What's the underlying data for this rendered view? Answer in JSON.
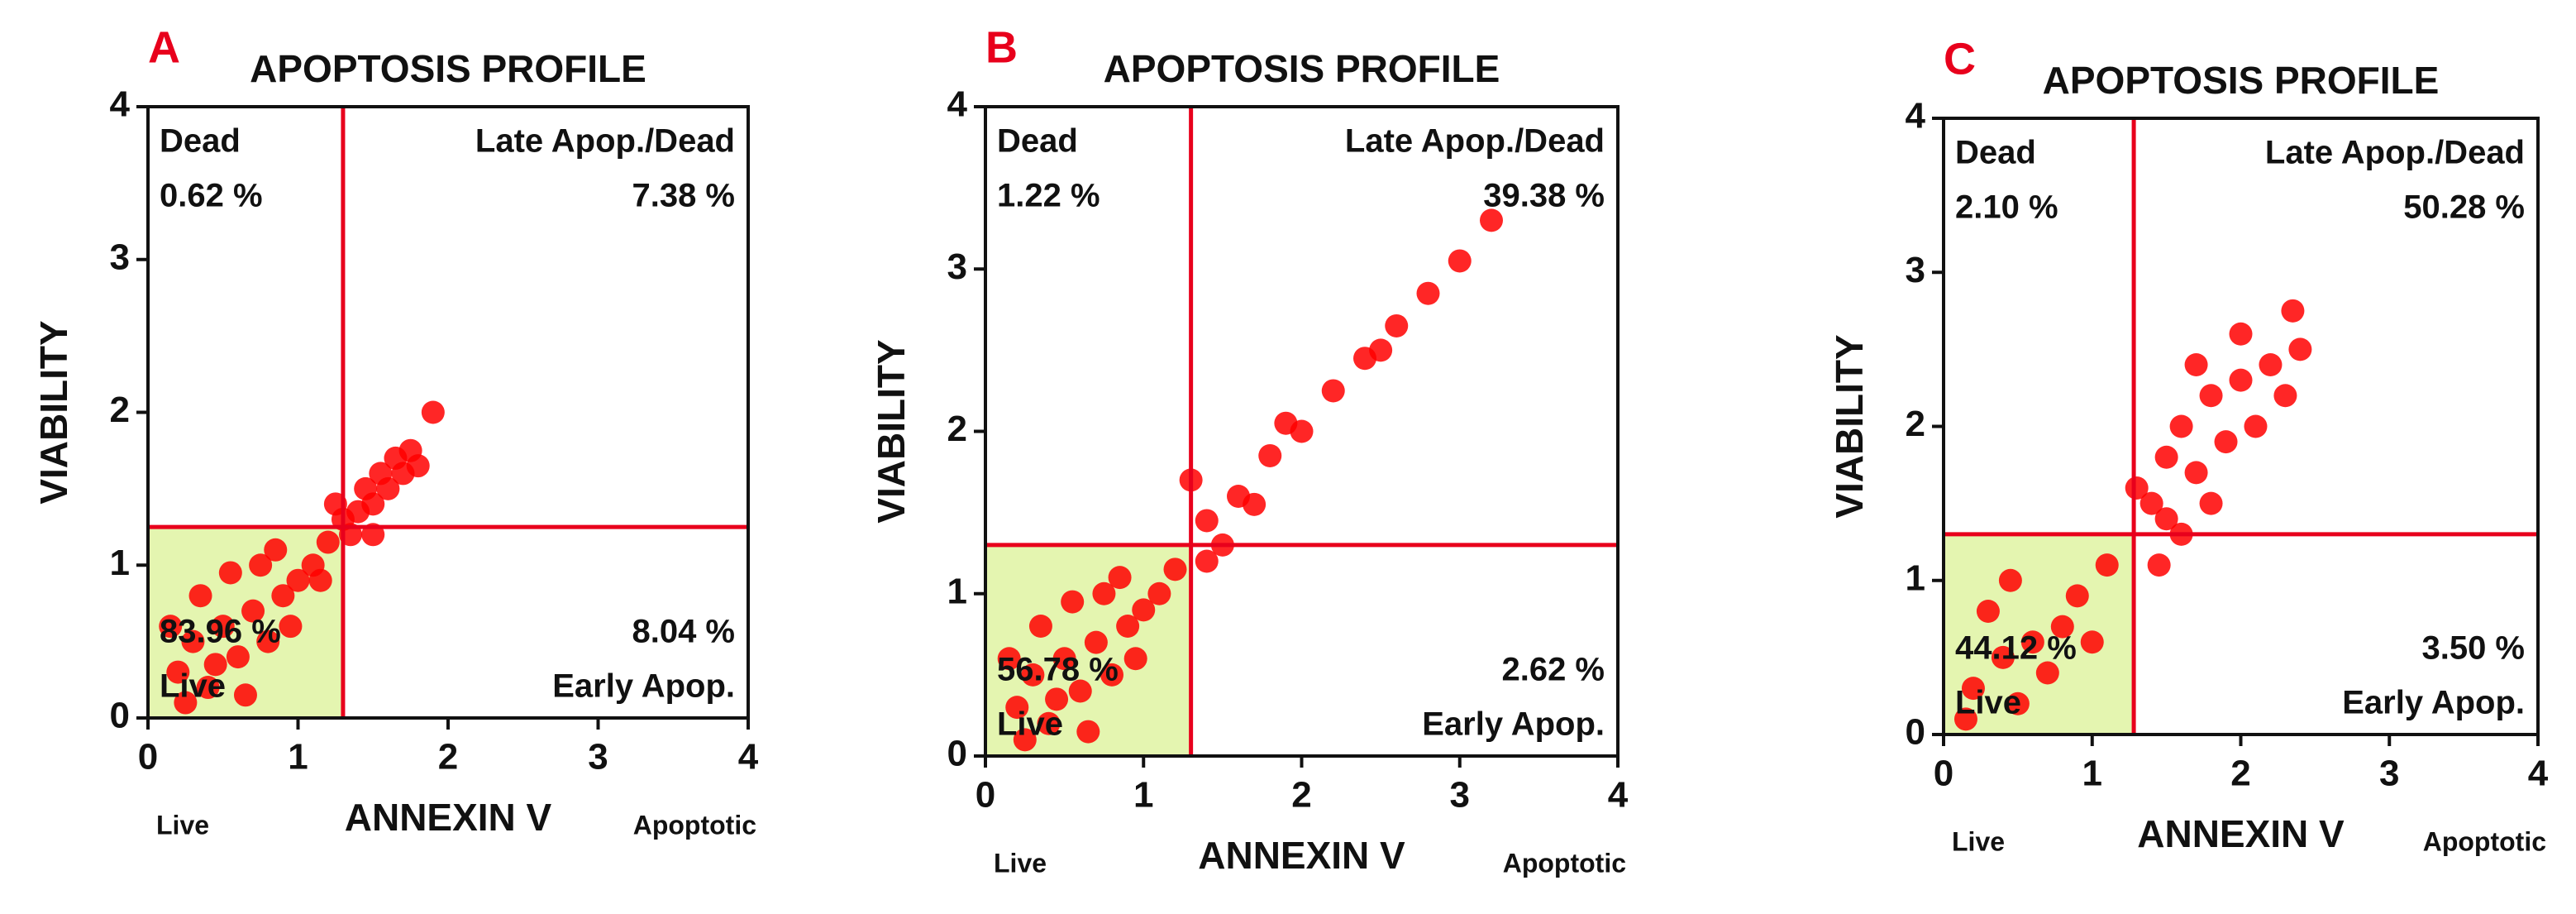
{
  "chart_data": [
    {
      "type": "scatter",
      "panel": "A",
      "title": "APOPTOSIS PROFILE",
      "x_label": "ANNEXIN V",
      "y_label": "VIABILITY",
      "x_left_label": "Live",
      "x_right_label": "Apoptotic",
      "xlim": [
        0,
        4
      ],
      "ylim": [
        0,
        4
      ],
      "xticks": [
        0,
        1,
        2,
        3,
        4
      ],
      "yticks": [
        0,
        1,
        2,
        3,
        4
      ],
      "color": "#ff0000",
      "gate_color": "#e8001c",
      "live_fill": "#e4f5b0",
      "gate": {
        "x": 1.3,
        "y": 1.25
      },
      "quadrants": [
        {
          "name": "Dead",
          "corner": "top-left",
          "value": 0.62,
          "value_label": "0.62 %"
        },
        {
          "name": "Late Apop./Dead",
          "corner": "top-right",
          "value": 7.38,
          "value_label": "7.38 %"
        },
        {
          "name": "Early Apop.",
          "corner": "bottom-right",
          "value": 8.04,
          "value_label": "8.04 %"
        },
        {
          "name": "Live",
          "corner": "bottom-left",
          "value": 83.96,
          "value_label": "83.96 %"
        }
      ],
      "x": [
        0.2,
        0.3,
        0.4,
        0.5,
        0.6,
        0.7,
        0.8,
        0.9,
        1.0,
        0.35,
        0.55,
        0.15,
        0.75,
        0.45,
        0.65,
        0.25,
        0.95,
        1.1,
        0.85,
        1.2,
        1.3,
        1.4,
        1.45,
        1.5,
        1.55,
        1.6,
        1.65,
        1.7,
        1.75,
        1.8,
        1.35,
        1.5,
        1.25,
        1.9,
        1.15
      ],
      "values": [
        0.3,
        0.5,
        0.2,
        0.6,
        0.4,
        0.7,
        0.5,
        0.8,
        0.9,
        0.8,
        0.95,
        0.6,
        1.0,
        0.35,
        0.15,
        0.1,
        0.6,
        1.0,
        1.1,
        1.15,
        1.3,
        1.35,
        1.5,
        1.4,
        1.6,
        1.5,
        1.7,
        1.6,
        1.75,
        1.65,
        1.2,
        1.2,
        1.4,
        2.0,
        0.9
      ]
    },
    {
      "type": "scatter",
      "panel": "B",
      "title": "APOPTOSIS PROFILE",
      "x_label": "ANNEXIN V",
      "y_label": "VIABILITY",
      "x_left_label": "Live",
      "x_right_label": "Apoptotic",
      "xlim": [
        0,
        4
      ],
      "ylim": [
        0,
        4
      ],
      "xticks": [
        0,
        1,
        2,
        3,
        4
      ],
      "yticks": [
        0,
        1,
        2,
        3,
        4
      ],
      "color": "#ff0000",
      "gate_color": "#e8001c",
      "live_fill": "#e4f5b0",
      "gate": {
        "x": 1.3,
        "y": 1.3
      },
      "quadrants": [
        {
          "name": "Dead",
          "corner": "top-left",
          "value": 1.22,
          "value_label": "1.22 %"
        },
        {
          "name": "Late Apop./Dead",
          "corner": "top-right",
          "value": 39.38,
          "value_label": "39.38 %"
        },
        {
          "name": "Early Apop.",
          "corner": "bottom-right",
          "value": 2.62,
          "value_label": "2.62 %"
        },
        {
          "name": "Live",
          "corner": "bottom-left",
          "value": 56.78,
          "value_label": "56.78 %"
        }
      ],
      "x": [
        0.2,
        0.3,
        0.4,
        0.5,
        0.6,
        0.7,
        0.8,
        0.9,
        1.0,
        0.35,
        0.55,
        0.15,
        0.75,
        0.45,
        0.65,
        0.25,
        0.95,
        1.1,
        0.85,
        1.2,
        1.4,
        1.6,
        1.8,
        2.0,
        2.2,
        2.4,
        2.6,
        2.8,
        3.0,
        3.2,
        1.5,
        1.7,
        1.9,
        2.5,
        1.3,
        1.4
      ],
      "values": [
        0.3,
        0.5,
        0.2,
        0.6,
        0.4,
        0.7,
        0.5,
        0.8,
        0.9,
        0.8,
        0.95,
        0.6,
        1.0,
        0.35,
        0.15,
        0.1,
        0.6,
        1.0,
        1.1,
        1.15,
        1.45,
        1.6,
        1.85,
        2.0,
        2.25,
        2.45,
        2.65,
        2.85,
        3.05,
        3.3,
        1.3,
        1.55,
        2.05,
        2.5,
        1.7,
        1.2
      ]
    },
    {
      "type": "scatter",
      "panel": "C",
      "title": "APOPTOSIS PROFILE",
      "x_label": "ANNEXIN V",
      "y_label": "VIABILITY",
      "x_left_label": "Live",
      "x_right_label": "Apoptotic",
      "xlim": [
        0,
        4
      ],
      "ylim": [
        0,
        4
      ],
      "xticks": [
        0,
        1,
        2,
        3,
        4
      ],
      "yticks": [
        0,
        1,
        2,
        3,
        4
      ],
      "color": "#ff0000",
      "gate_color": "#e8001c",
      "live_fill": "#e4f5b0",
      "gate": {
        "x": 1.28,
        "y": 1.3
      },
      "quadrants": [
        {
          "name": "Dead",
          "corner": "top-left",
          "value": 2.1,
          "value_label": "2.10 %"
        },
        {
          "name": "Late Apop./Dead",
          "corner": "top-right",
          "value": 50.28,
          "value_label": "50.28 %"
        },
        {
          "name": "Early Apop.",
          "corner": "bottom-right",
          "value": 3.5,
          "value_label": "3.50 %"
        },
        {
          "name": "Live",
          "corner": "bottom-left",
          "value": 44.12,
          "value_label": "44.12 %"
        }
      ],
      "x": [
        0.2,
        0.4,
        0.6,
        0.8,
        0.5,
        0.3,
        0.7,
        0.9,
        1.0,
        0.45,
        1.1,
        0.15,
        1.4,
        1.5,
        1.6,
        1.7,
        1.8,
        1.9,
        2.0,
        2.1,
        2.2,
        2.3,
        2.4,
        1.5,
        1.6,
        1.3,
        2.0,
        1.8,
        2.35,
        1.7,
        1.45
      ],
      "values": [
        0.3,
        0.5,
        0.6,
        0.7,
        0.2,
        0.8,
        0.4,
        0.9,
        0.6,
        1.0,
        1.1,
        0.1,
        1.5,
        1.8,
        2.0,
        1.7,
        2.2,
        1.9,
        2.3,
        2.0,
        2.4,
        2.2,
        2.5,
        1.4,
        1.3,
        1.6,
        2.6,
        1.5,
        2.75,
        2.4,
        1.1
      ]
    }
  ]
}
